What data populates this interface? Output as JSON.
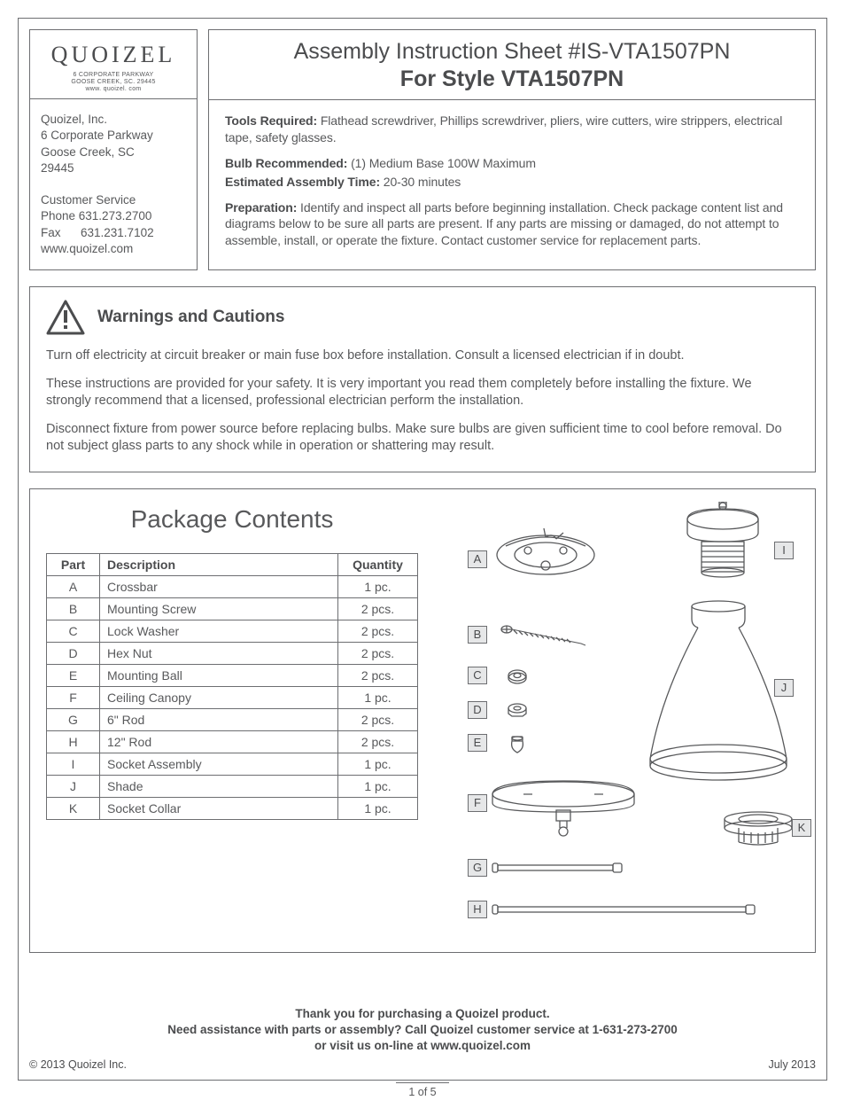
{
  "logo": {
    "name": "QUOIZEL",
    "line1": "6 CORPORATE PARKWAY",
    "line2": "GOOSE CREEK, SC. 29445",
    "line3": "www. quoizel. com"
  },
  "company": {
    "name": "Quoizel, Inc.",
    "addr1": "6 Corporate Parkway",
    "addr2": "Goose Creek, SC",
    "zip": "29445",
    "cs_label": "Customer  Service",
    "phone": "Phone  631.273.2700",
    "fax": "Fax      631.231.7102",
    "web": "www.quoizel.com"
  },
  "title": {
    "line1": "Assembly Instruction Sheet #IS-VTA1507PN",
    "line2": "For Style VTA1507PN"
  },
  "specs": {
    "tools_label": "Tools Required:",
    "tools_text": " Flathead screwdriver, Phillips screwdriver, pliers, wire cutters, wire strippers, electrical tape, safety glasses.",
    "bulb_label": "Bulb Recommended:",
    "bulb_text": "  (1) Medium Base 100W Maximum",
    "time_label": "Estimated Assembly Time:",
    "time_text": " 20-30 minutes",
    "prep_label": "Preparation:",
    "prep_text": " Identify and inspect all parts before beginning installation. Check package content list and diagrams below to be sure all parts are present. If any parts are missing or damaged, do not attempt to assemble, install, or operate the fixture. Contact customer service for replacement parts."
  },
  "warnings": {
    "heading": "Warnings and Cautions",
    "p1": "Turn off electricity at circuit breaker or main fuse box before installation. Consult a licensed electrician if in doubt.",
    "p2": "These instructions are provided for your safety. It is very important you read them completely before installing the fixture. We strongly recommend that a licensed, professional electrician perform the installation.",
    "p3": "Disconnect fixture from power source before replacing bulbs. Make sure bulbs are given sufficient time to cool before removal. Do not subject glass parts to any shock while in operation or shattering may result."
  },
  "package": {
    "heading": "Package Contents",
    "columns": [
      "Part",
      "Description",
      "Quantity"
    ],
    "rows": [
      [
        "A",
        "Crossbar",
        "1 pc."
      ],
      [
        "B",
        "Mounting Screw",
        "2 pcs."
      ],
      [
        "C",
        "Lock Washer",
        "2 pcs."
      ],
      [
        "D",
        "Hex Nut",
        "2 pcs."
      ],
      [
        "E",
        "Mounting Ball",
        "2 pcs."
      ],
      [
        "F",
        "Ceiling Canopy",
        "1 pc."
      ],
      [
        "G",
        "6\" Rod",
        "2 pcs."
      ],
      [
        "H",
        "12\" Rod",
        "2 pcs."
      ],
      [
        "I",
        "Socket Assembly",
        "1 pc."
      ],
      [
        "J",
        "Shade",
        "1 pc."
      ],
      [
        "K",
        "Socket Collar",
        "1 pc."
      ]
    ]
  },
  "diagram_labels": [
    "A",
    "B",
    "C",
    "D",
    "E",
    "F",
    "G",
    "H",
    "I",
    "J",
    "K"
  ],
  "footer": {
    "l1": "Thank you for purchasing a Quoizel product.",
    "l2": "Need assistance with parts or assembly? Call Quoizel customer service at 1-631-273-2700",
    "l3": "or visit us on-line at www.quoizel.com",
    "copyright": "2013  Quoizel Inc.",
    "date": "July 2013",
    "page": "1 of 5"
  },
  "colors": {
    "text": "#58595b",
    "border": "#6d6e71",
    "label_bg": "#e6e7e8"
  }
}
